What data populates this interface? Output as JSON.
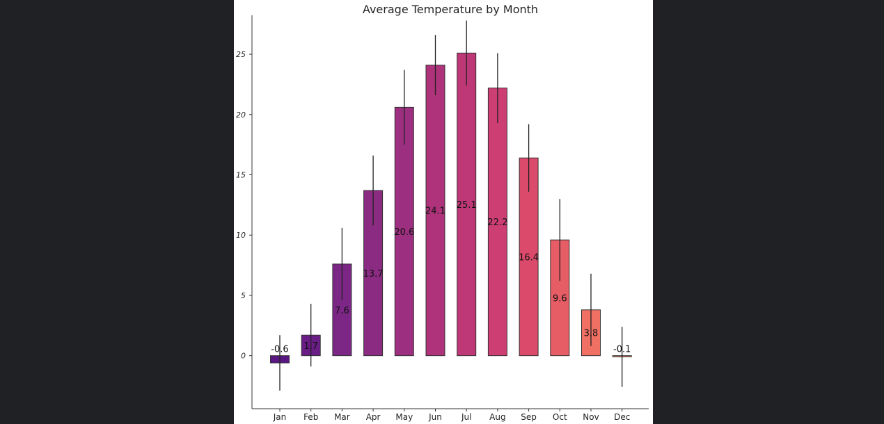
{
  "chart_data": {
    "type": "bar",
    "title": "Average Temperature by Month",
    "xlabel": "",
    "ylabel": "",
    "categories": [
      "Jan",
      "Feb",
      "Mar",
      "Apr",
      "May",
      "Jun",
      "Jul",
      "Aug",
      "Sep",
      "Oct",
      "Nov",
      "Dec"
    ],
    "values": [
      -0.6,
      1.7,
      7.6,
      13.7,
      20.6,
      24.1,
      25.1,
      22.2,
      16.4,
      9.6,
      3.8,
      -0.1
    ],
    "value_labels": [
      "-0.6",
      "1.7",
      "7.6",
      "13.7",
      "20.6",
      "24.1",
      "25.1",
      "22.2",
      "16.4",
      "9.6",
      "3.8",
      "-0.1"
    ],
    "error": [
      2.3,
      2.6,
      3.0,
      2.9,
      3.1,
      2.5,
      2.7,
      2.9,
      2.8,
      3.4,
      3.0,
      2.5
    ],
    "colors": [
      "#5a1682",
      "#6b1d86",
      "#7c2685",
      "#8b2b82",
      "#9c2f7f",
      "#ae337b",
      "#be3877",
      "#cd3e72",
      "#db4a6b",
      "#e65d66",
      "#f07064",
      "#f3826a"
    ],
    "yticks": [
      0,
      5,
      10,
      15,
      20,
      25
    ],
    "ytick_labels": [
      "0",
      "5",
      "10",
      "15",
      "20",
      "25"
    ],
    "ylim": [
      -4.4,
      29.5
    ],
    "grid": false,
    "legend": "none",
    "edge_color": "#333333",
    "background": "#ffffff"
  }
}
